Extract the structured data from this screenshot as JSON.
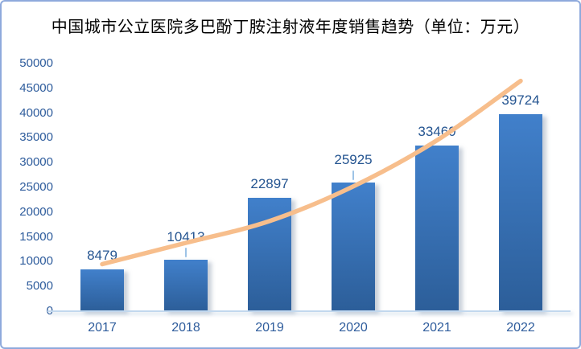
{
  "frame": {
    "border_color": "#8FAADC",
    "background": "#FFFFFF"
  },
  "chart_data": {
    "type": "bar",
    "title": "中国城市公立医院多巴酚丁胺注射液年度销售趋势（单位：万元）",
    "categories": [
      "2017",
      "2018",
      "2019",
      "2020",
      "2021",
      "2022"
    ],
    "values": [
      8479,
      10413,
      22897,
      25925,
      33460,
      39724
    ],
    "data_labels": [
      "8479",
      "10413",
      "22897",
      "25925",
      "33460",
      "39724"
    ],
    "label_has_leader_line": [
      false,
      true,
      false,
      true,
      false,
      false
    ],
    "xlabel": "",
    "ylabel": "",
    "ylim": [
      0,
      50000
    ],
    "ytick_step": 5000,
    "yticks": [
      0,
      5000,
      10000,
      15000,
      20000,
      25000,
      30000,
      35000,
      40000,
      45000,
      50000
    ],
    "grid": false,
    "legend": "none",
    "trendline": {
      "type": "exponential",
      "values": [
        9500,
        13800,
        18200,
        25200,
        34500,
        46500
      ],
      "color": "#F7BE8C"
    },
    "colors": {
      "bar_gradient_top": "#4180CB",
      "bar_gradient_bottom": "#2C5E99",
      "data_label_color": "#255591",
      "axis_label_color": "#2E5C9C",
      "baseline_color": "#C2D8EE",
      "leader_line_color": "#9DC3E6",
      "title_color": "#000000"
    }
  }
}
